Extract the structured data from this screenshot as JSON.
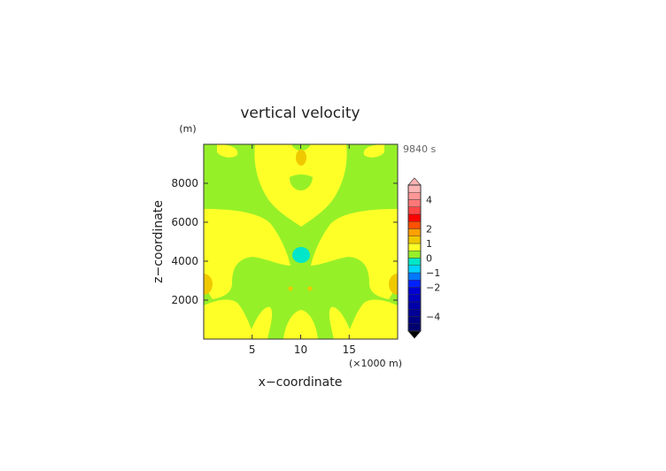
{
  "chart_data": {
    "type": "heatmap",
    "title": "vertical velocity",
    "xlabel": "x−coordinate",
    "ylabel": "z−coordinate",
    "y_unit_label": "(m)",
    "x_unit_label": "(×1000 m)",
    "time_label": "9840 s",
    "xlim": [
      0,
      20
    ],
    "ylim": [
      0,
      10000
    ],
    "x_ticks": [
      5,
      10,
      15
    ],
    "x_tick_labels": [
      "5",
      "10",
      "15"
    ],
    "y_ticks": [
      2000,
      4000,
      6000,
      8000
    ],
    "y_tick_labels": [
      "2000",
      "4000",
      "6000",
      "8000"
    ],
    "grid": false,
    "colorbar": {
      "placement": "right",
      "bins": [
        {
          "from": -5.0,
          "to": -4.5,
          "color": "#00006e"
        },
        {
          "from": -4.5,
          "to": -4.0,
          "color": "#000082"
        },
        {
          "from": -4.0,
          "to": -3.5,
          "color": "#000096"
        },
        {
          "from": -3.5,
          "to": -3.0,
          "color": "#0000aa"
        },
        {
          "from": -3.0,
          "to": -2.5,
          "color": "#0000be"
        },
        {
          "from": -2.5,
          "to": -2.0,
          "color": "#0000d2"
        },
        {
          "from": -2.0,
          "to": -1.5,
          "color": "#0022ff"
        },
        {
          "from": -1.5,
          "to": -1.0,
          "color": "#0078ff"
        },
        {
          "from": -1.0,
          "to": -0.5,
          "color": "#00d2ff"
        },
        {
          "from": -0.5,
          "to": 0.0,
          "color": "#00e6c8"
        },
        {
          "from": 0.0,
          "to": 0.5,
          "color": "#96f028"
        },
        {
          "from": 0.5,
          "to": 1.0,
          "color": "#ffff28"
        },
        {
          "from": 1.0,
          "to": 1.5,
          "color": "#f0c800"
        },
        {
          "from": 1.5,
          "to": 2.0,
          "color": "#ffa000"
        },
        {
          "from": 2.0,
          "to": 2.5,
          "color": "#ff5000"
        },
        {
          "from": 2.5,
          "to": 3.0,
          "color": "#ff0000"
        },
        {
          "from": 3.0,
          "to": 3.5,
          "color": "#ff4646"
        },
        {
          "from": 3.5,
          "to": 4.0,
          "color": "#ff7878"
        },
        {
          "from": 4.0,
          "to": 4.5,
          "color": "#ff9696"
        },
        {
          "from": 4.5,
          "to": 5.0,
          "color": "#ffb4b4"
        }
      ],
      "tick_values": [
        4,
        2,
        1,
        0,
        -1,
        -2,
        -4
      ],
      "tick_labels": [
        "4",
        "2",
        "1",
        "0",
        "−1",
        "−2",
        "−4"
      ]
    },
    "field": {
      "background": {
        "value": 0.25,
        "label": "0 to 0.5",
        "color": "#96f028"
      },
      "regions": [
        {
          "name": "lower-left-lobe",
          "value": 0.75,
          "color": "#ffff28"
        },
        {
          "name": "lower-right-lobe",
          "value": 0.75,
          "color": "#ffff28"
        },
        {
          "name": "bottom-left-arm",
          "value": 0.75,
          "color": "#ffff28"
        },
        {
          "name": "bottom-right-arm",
          "value": 0.75,
          "color": "#ffff28"
        },
        {
          "name": "bottom-center-arm",
          "value": 0.75,
          "color": "#ffff28"
        },
        {
          "name": "upper-center-column",
          "value": 0.75,
          "color": "#ffff28"
        },
        {
          "name": "top-left-blob",
          "value": 0.75,
          "color": "#ffff28"
        },
        {
          "name": "top-right-blob",
          "value": 0.75,
          "color": "#ffff28"
        },
        {
          "name": "top-center-maximum",
          "value": 1.25,
          "color": "#f0c800",
          "x": 10,
          "z": 9300
        },
        {
          "name": "left-edge-maximum",
          "value": 1.25,
          "color": "#f0c800",
          "x": 0,
          "z": 2800
        },
        {
          "name": "right-edge-maximum",
          "value": 1.25,
          "color": "#f0c800",
          "x": 20,
          "z": 2800
        },
        {
          "name": "center-downdraft",
          "value": -0.25,
          "color": "#00e6c8",
          "x": 10,
          "z": 4400
        }
      ]
    }
  }
}
